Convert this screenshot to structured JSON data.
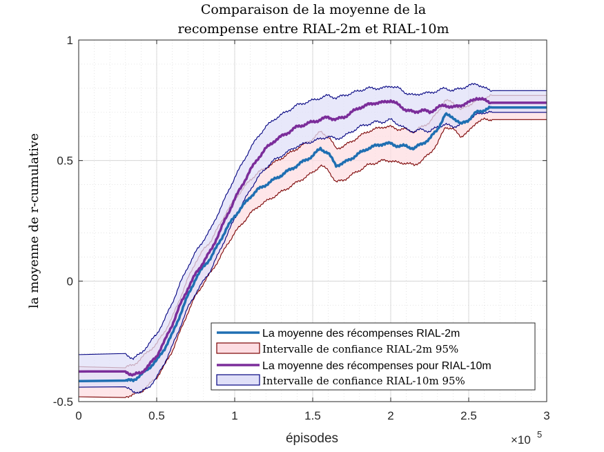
{
  "chart_data": {
    "type": "line",
    "title_lines": [
      "Comparaison de la moyenne de la",
      "recompense entre RIAL-2m et RIAL-10m"
    ],
    "xlabel": "épisodes",
    "ylabel": "la moyenne de r-cumulative",
    "x_exponent_label": "×10",
    "x_exponent_power": "5",
    "xlim": [
      0,
      3
    ],
    "ylim": [
      -0.5,
      1
    ],
    "x_ticks": [
      0,
      0.5,
      1,
      1.5,
      2,
      2.5,
      3
    ],
    "x_tick_labels": [
      "0",
      "0.5",
      "1",
      "1.5",
      "2",
      "2.5",
      "3"
    ],
    "y_ticks": [
      -0.5,
      0,
      0.5,
      1
    ],
    "y_tick_labels": [
      "-0.5",
      "0",
      "0.5",
      "1"
    ],
    "grid": true,
    "minor_grid": true,
    "legend_position": "bottom-right",
    "x": [
      0,
      0.3,
      0.35,
      0.4,
      0.45,
      0.5,
      0.55,
      0.6,
      0.65,
      0.7,
      0.75,
      0.8,
      0.85,
      0.9,
      0.95,
      1.0,
      1.05,
      1.1,
      1.15,
      1.2,
      1.25,
      1.3,
      1.35,
      1.4,
      1.45,
      1.5,
      1.55,
      1.6,
      1.65,
      1.7,
      1.75,
      1.8,
      1.85,
      1.9,
      1.95,
      2.0,
      2.05,
      2.1,
      2.15,
      2.2,
      2.25,
      2.3,
      2.35,
      2.4,
      2.45,
      2.5,
      2.55,
      2.6,
      2.65,
      3.0
    ],
    "series": [
      {
        "name": "La moyenne des récompenses RIAL-2m",
        "kind": "mean",
        "color": "#1f6fb2",
        "values": [
          -0.415,
          -0.415,
          -0.41,
          -0.39,
          -0.36,
          -0.33,
          -0.28,
          -0.22,
          -0.14,
          -0.06,
          0.01,
          0.06,
          0.1,
          0.16,
          0.22,
          0.27,
          0.31,
          0.35,
          0.38,
          0.4,
          0.42,
          0.44,
          0.46,
          0.48,
          0.5,
          0.52,
          0.55,
          0.53,
          0.48,
          0.49,
          0.51,
          0.53,
          0.55,
          0.56,
          0.57,
          0.57,
          0.56,
          0.56,
          0.55,
          0.57,
          0.59,
          0.63,
          0.69,
          0.68,
          0.65,
          0.67,
          0.7,
          0.71,
          0.72,
          0.72
        ]
      },
      {
        "name": "Intervalle de confiance RIAL-2m 95%",
        "kind": "band",
        "fill": "#fddde2",
        "stroke": "#7a0000",
        "lower": [
          -0.48,
          -0.48,
          -0.47,
          -0.46,
          -0.43,
          -0.4,
          -0.35,
          -0.29,
          -0.21,
          -0.13,
          -0.06,
          -0.01,
          0.04,
          0.09,
          0.15,
          0.2,
          0.24,
          0.28,
          0.31,
          0.33,
          0.35,
          0.37,
          0.39,
          0.41,
          0.43,
          0.45,
          0.48,
          0.46,
          0.41,
          0.42,
          0.44,
          0.46,
          0.48,
          0.49,
          0.5,
          0.5,
          0.49,
          0.49,
          0.48,
          0.5,
          0.53,
          0.57,
          0.64,
          0.63,
          0.6,
          0.62,
          0.66,
          0.67,
          0.67,
          0.67
        ],
        "upper": [
          -0.355,
          -0.355,
          -0.35,
          -0.32,
          -0.29,
          -0.26,
          -0.21,
          -0.15,
          -0.07,
          0.01,
          0.08,
          0.13,
          0.17,
          0.23,
          0.29,
          0.34,
          0.38,
          0.42,
          0.45,
          0.47,
          0.49,
          0.51,
          0.53,
          0.55,
          0.57,
          0.59,
          0.62,
          0.6,
          0.55,
          0.56,
          0.58,
          0.6,
          0.62,
          0.63,
          0.64,
          0.64,
          0.63,
          0.63,
          0.62,
          0.64,
          0.66,
          0.7,
          0.75,
          0.74,
          0.71,
          0.73,
          0.75,
          0.76,
          0.77,
          0.77
        ]
      },
      {
        "name": "La moyenne des récompenses pour RIAL-10m",
        "kind": "mean",
        "color": "#7b2d9a",
        "values": [
          -0.375,
          -0.375,
          -0.39,
          -0.38,
          -0.35,
          -0.31,
          -0.25,
          -0.18,
          -0.1,
          -0.03,
          0.03,
          0.08,
          0.13,
          0.2,
          0.27,
          0.34,
          0.4,
          0.46,
          0.51,
          0.55,
          0.58,
          0.6,
          0.62,
          0.64,
          0.65,
          0.66,
          0.67,
          0.68,
          0.67,
          0.68,
          0.7,
          0.72,
          0.73,
          0.74,
          0.74,
          0.75,
          0.73,
          0.71,
          0.7,
          0.71,
          0.7,
          0.72,
          0.73,
          0.72,
          0.73,
          0.74,
          0.76,
          0.75,
          0.74,
          0.74
        ]
      },
      {
        "name": "Intervalle de confiance RIAL-10m 95%",
        "kind": "band",
        "fill": "#e0e0f8",
        "stroke": "#000080",
        "lower": [
          -0.44,
          -0.44,
          -0.46,
          -0.46,
          -0.44,
          -0.4,
          -0.34,
          -0.27,
          -0.19,
          -0.11,
          -0.05,
          0.0,
          0.05,
          0.12,
          0.19,
          0.26,
          0.32,
          0.38,
          0.43,
          0.47,
          0.5,
          0.52,
          0.54,
          0.56,
          0.57,
          0.58,
          0.59,
          0.6,
          0.59,
          0.6,
          0.62,
          0.64,
          0.65,
          0.66,
          0.66,
          0.67,
          0.65,
          0.63,
          0.62,
          0.63,
          0.62,
          0.64,
          0.65,
          0.64,
          0.65,
          0.67,
          0.69,
          0.7,
          0.7,
          0.7
        ],
        "upper": [
          -0.305,
          -0.305,
          -0.32,
          -0.3,
          -0.26,
          -0.22,
          -0.16,
          -0.09,
          -0.01,
          0.06,
          0.12,
          0.17,
          0.22,
          0.29,
          0.36,
          0.43,
          0.49,
          0.55,
          0.6,
          0.64,
          0.67,
          0.69,
          0.71,
          0.73,
          0.74,
          0.75,
          0.76,
          0.77,
          0.76,
          0.77,
          0.78,
          0.79,
          0.8,
          0.8,
          0.8,
          0.81,
          0.8,
          0.78,
          0.77,
          0.78,
          0.78,
          0.79,
          0.8,
          0.79,
          0.8,
          0.81,
          0.82,
          0.8,
          0.79,
          0.79
        ]
      }
    ],
    "legend_entries": [
      {
        "label": "La moyenne des récompenses RIAL-2m",
        "kind": "line",
        "color": "#1f6fb2",
        "font": "sans"
      },
      {
        "label": "Intervalle de confiance RIAL-2m 95%",
        "kind": "patch",
        "fill": "#fddde2",
        "stroke": "#7a0000",
        "font": "serif"
      },
      {
        "label": "La moyenne des récompenses pour RIAL-10m",
        "kind": "line",
        "color": "#7b2d9a",
        "font": "sans"
      },
      {
        "label": "Intervalle de confiance RIAL-10m 95%",
        "kind": "patch",
        "fill": "#e0e0f8",
        "stroke": "#000080",
        "font": "serif"
      }
    ]
  }
}
